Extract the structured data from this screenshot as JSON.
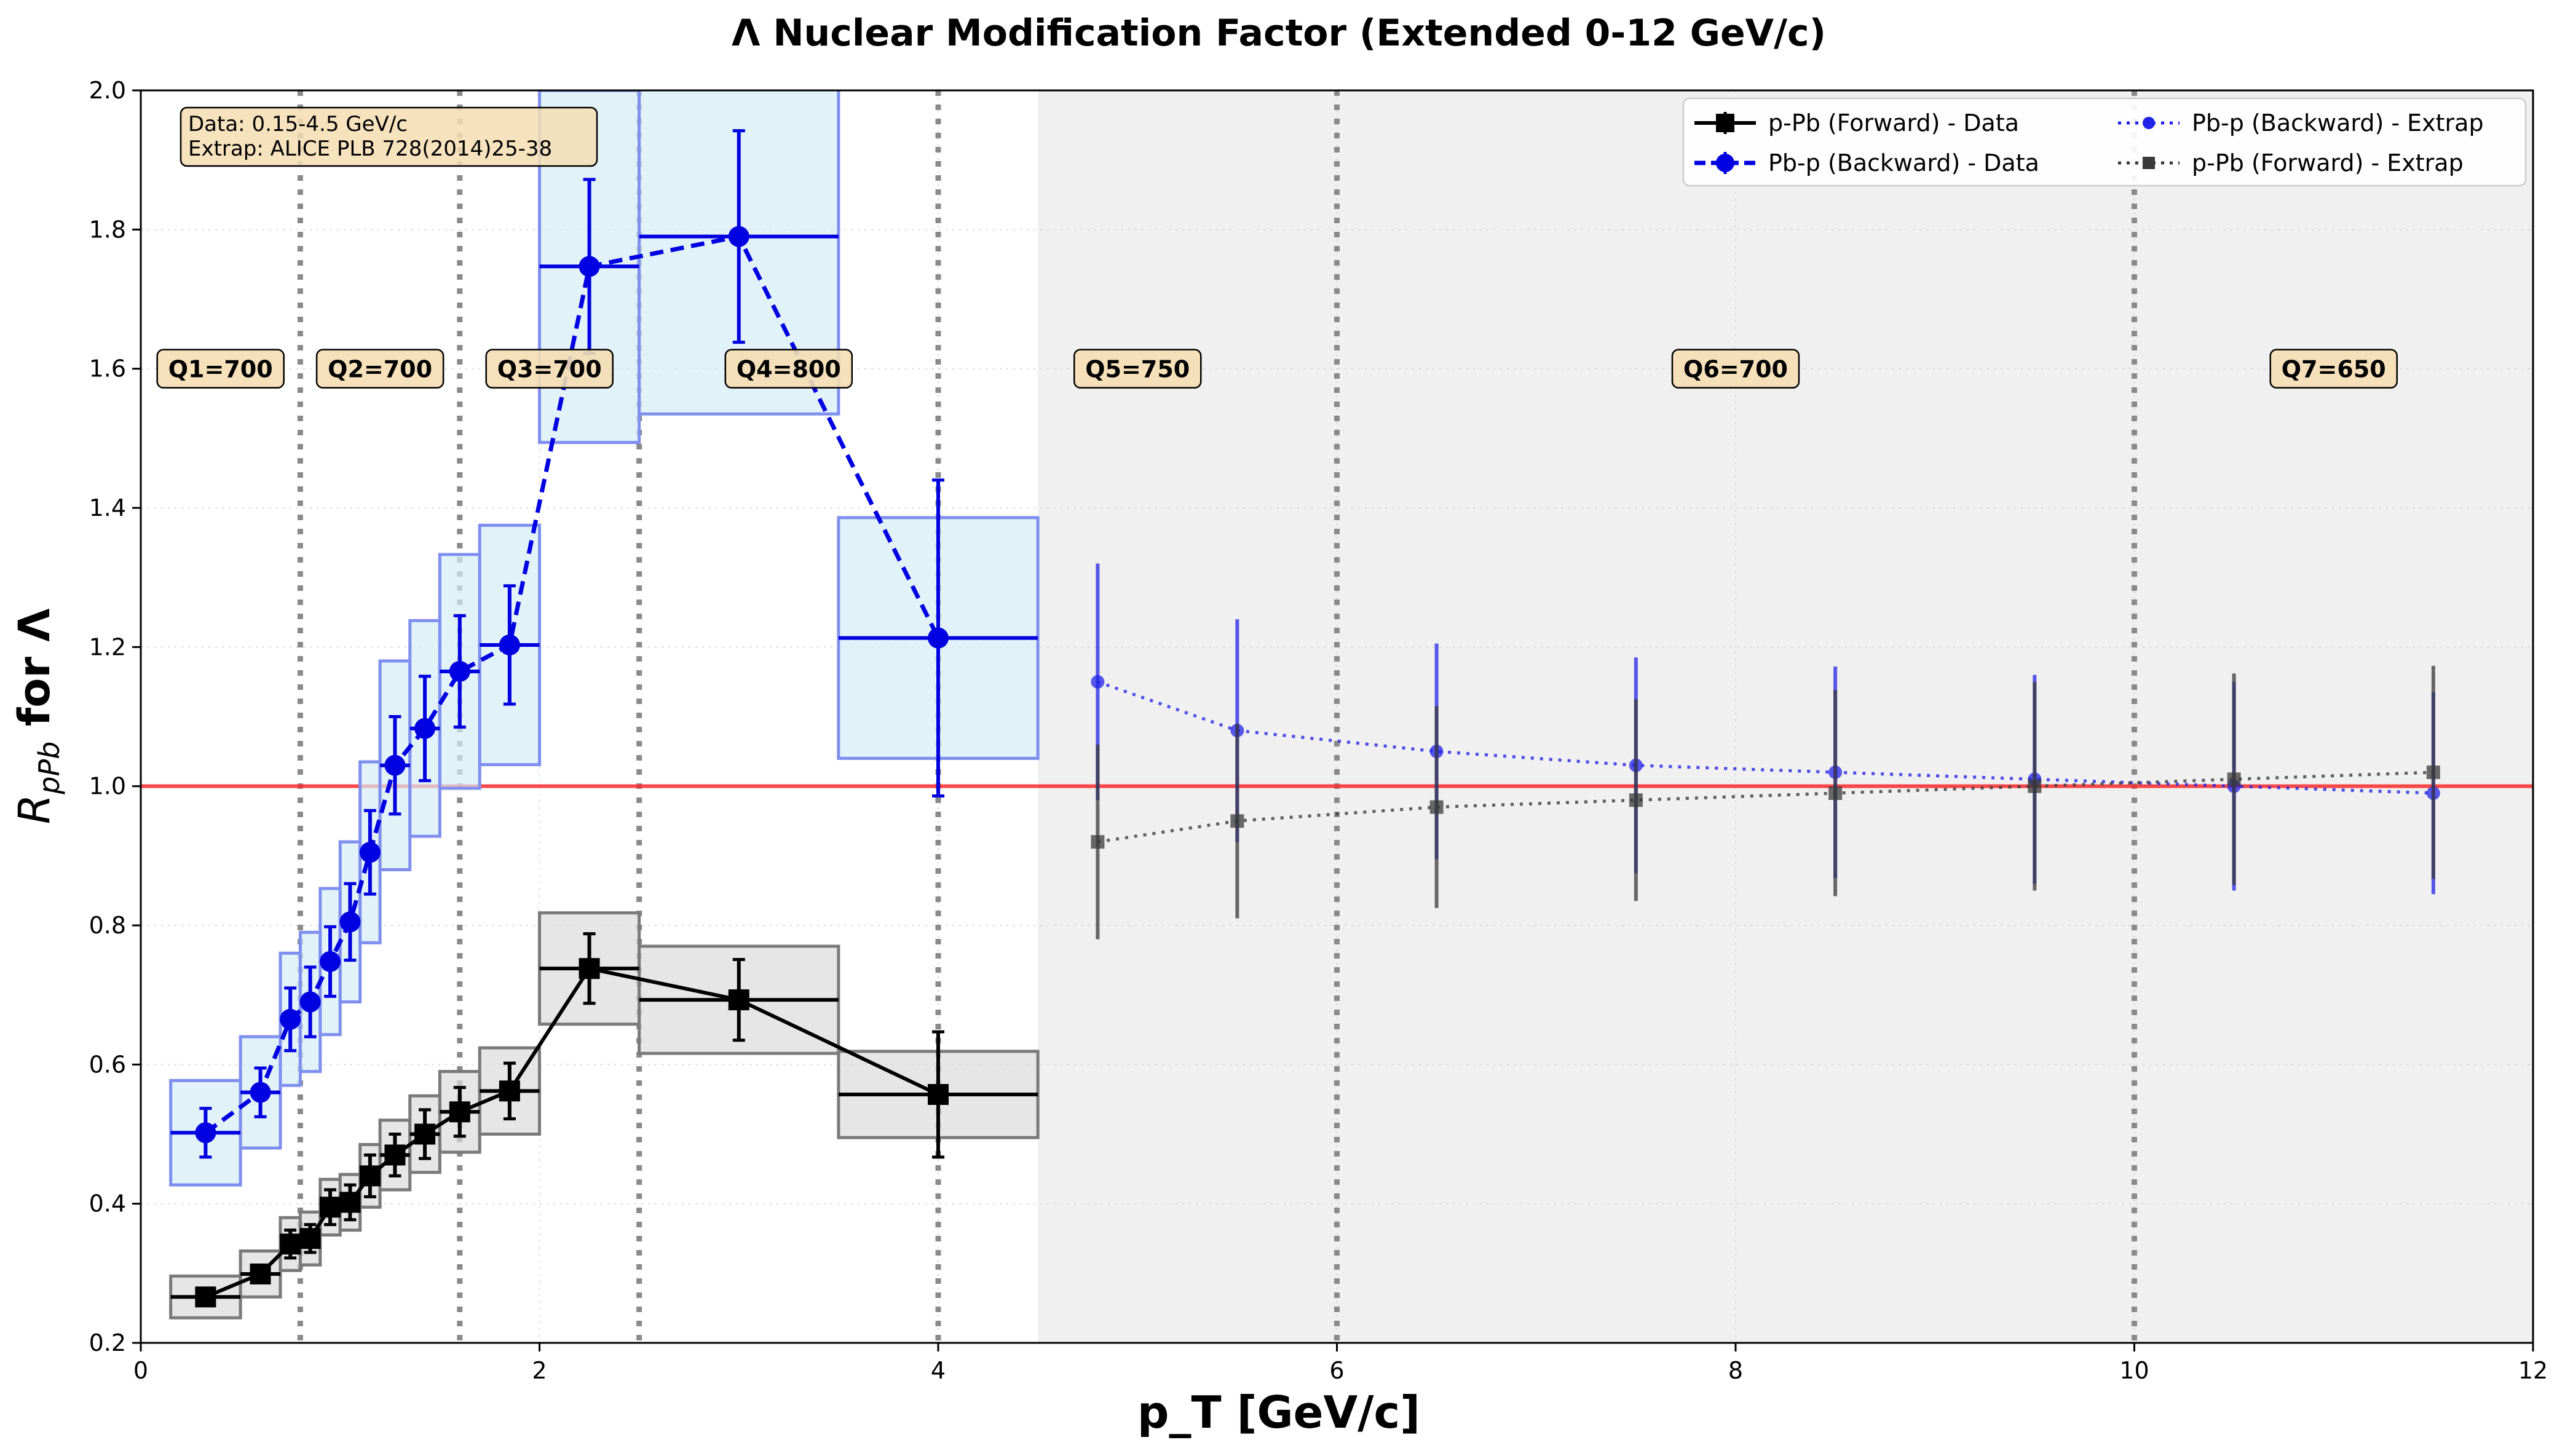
{
  "chart_data": {
    "type": "scatter",
    "title": "Λ Nuclear Modification Factor (Extended 0-12 GeV/c)",
    "xlabel": "p_T [GeV/c]",
    "ylabel_main": "R",
    "ylabel_sub": "pPb",
    "ylabel_tail": " for Λ",
    "xlim": [
      0,
      12
    ],
    "ylim": [
      0.2,
      2.0
    ],
    "xticks": [
      0,
      2,
      4,
      6,
      8,
      10,
      12
    ],
    "yticks": [
      0.2,
      0.4,
      0.6,
      0.8,
      1.0,
      1.2,
      1.4,
      1.6,
      1.8,
      2.0
    ],
    "grid": true,
    "reference_line": 1.0,
    "extrapolation_region": [
      4.5,
      12
    ],
    "info_box": [
      "Data: 0.15-4.5 GeV/c",
      "Extrap: ALICE PLB 728(2014)25-38"
    ],
    "quantile_boundaries": [
      0.8,
      1.6,
      2.5,
      4.0,
      6.0,
      10.0
    ],
    "quantile_labels": [
      {
        "text": "Q1=700",
        "x": 0.4
      },
      {
        "text": "Q2=700",
        "x": 1.2
      },
      {
        "text": "Q3=700",
        "x": 2.05
      },
      {
        "text": "Q4=800",
        "x": 3.25
      },
      {
        "text": "Q5=750",
        "x": 5.0
      },
      {
        "text": "Q6=700",
        "x": 8.0
      },
      {
        "text": "Q7=650",
        "x": 11.0
      }
    ],
    "series": [
      {
        "name": "p-Pb (Forward) - Data",
        "color": "#000000",
        "marker": "square",
        "linestyle": "solid",
        "boxcolor": "#7a7a7a",
        "boxfill": "#dcdcdc",
        "points": [
          {
            "x": 0.325,
            "y": 0.266,
            "xl": 0.15,
            "xh": 0.5,
            "err": 0.012,
            "sys": 0.03
          },
          {
            "x": 0.6,
            "y": 0.299,
            "xl": 0.5,
            "xh": 0.7,
            "err": 0.012,
            "sys": 0.033
          },
          {
            "x": 0.75,
            "y": 0.342,
            "xl": 0.7,
            "xh": 0.8,
            "err": 0.02,
            "sys": 0.038
          },
          {
            "x": 0.85,
            "y": 0.35,
            "xl": 0.8,
            "xh": 0.9,
            "err": 0.02,
            "sys": 0.038
          },
          {
            "x": 0.95,
            "y": 0.395,
            "xl": 0.9,
            "xh": 1.0,
            "err": 0.025,
            "sys": 0.04
          },
          {
            "x": 1.05,
            "y": 0.402,
            "xl": 1.0,
            "xh": 1.1,
            "err": 0.025,
            "sys": 0.04
          },
          {
            "x": 1.15,
            "y": 0.44,
            "xl": 1.1,
            "xh": 1.2,
            "err": 0.03,
            "sys": 0.045
          },
          {
            "x": 1.275,
            "y": 0.47,
            "xl": 1.2,
            "xh": 1.35,
            "err": 0.03,
            "sys": 0.05
          },
          {
            "x": 1.425,
            "y": 0.5,
            "xl": 1.35,
            "xh": 1.5,
            "err": 0.035,
            "sys": 0.055
          },
          {
            "x": 1.6,
            "y": 0.532,
            "xl": 1.5,
            "xh": 1.7,
            "err": 0.035,
            "sys": 0.058
          },
          {
            "x": 1.85,
            "y": 0.562,
            "xl": 1.7,
            "xh": 2.0,
            "err": 0.04,
            "sys": 0.062
          },
          {
            "x": 2.25,
            "y": 0.738,
            "xl": 2.0,
            "xh": 2.5,
            "err": 0.05,
            "sys": 0.08
          },
          {
            "x": 3.0,
            "y": 0.693,
            "xl": 2.5,
            "xh": 3.5,
            "err": 0.058,
            "sys": 0.077
          },
          {
            "x": 4.0,
            "y": 0.557,
            "xl": 3.5,
            "xh": 4.5,
            "err": 0.09,
            "sys": 0.062
          }
        ]
      },
      {
        "name": "Pb-p (Backward) - Data",
        "color": "#0000e0",
        "marker": "circle",
        "linestyle": "dashed",
        "boxcolor": "#7f8ff0",
        "boxfill": "#d6ecf6",
        "points": [
          {
            "x": 0.325,
            "y": 0.502,
            "xl": 0.15,
            "xh": 0.5,
            "err": 0.035,
            "sys": 0.075
          },
          {
            "x": 0.6,
            "y": 0.56,
            "xl": 0.5,
            "xh": 0.7,
            "err": 0.035,
            "sys": 0.08
          },
          {
            "x": 0.75,
            "y": 0.665,
            "xl": 0.7,
            "xh": 0.8,
            "err": 0.045,
            "sys": 0.095
          },
          {
            "x": 0.85,
            "y": 0.69,
            "xl": 0.8,
            "xh": 0.9,
            "err": 0.05,
            "sys": 0.1
          },
          {
            "x": 0.95,
            "y": 0.748,
            "xl": 0.9,
            "xh": 1.0,
            "err": 0.05,
            "sys": 0.105
          },
          {
            "x": 1.05,
            "y": 0.805,
            "xl": 1.0,
            "xh": 1.1,
            "err": 0.055,
            "sys": 0.115
          },
          {
            "x": 1.15,
            "y": 0.905,
            "xl": 1.1,
            "xh": 1.2,
            "err": 0.06,
            "sys": 0.13
          },
          {
            "x": 1.275,
            "y": 1.03,
            "xl": 1.2,
            "xh": 1.35,
            "err": 0.07,
            "sys": 0.15
          },
          {
            "x": 1.425,
            "y": 1.083,
            "xl": 1.35,
            "xh": 1.5,
            "err": 0.075,
            "sys": 0.155
          },
          {
            "x": 1.6,
            "y": 1.165,
            "xl": 1.5,
            "xh": 1.7,
            "err": 0.08,
            "sys": 0.168
          },
          {
            "x": 1.85,
            "y": 1.203,
            "xl": 1.7,
            "xh": 2.0,
            "err": 0.085,
            "sys": 0.172
          },
          {
            "x": 2.25,
            "y": 1.747,
            "xl": 2.0,
            "xh": 2.5,
            "err": 0.125,
            "sys": 0.253
          },
          {
            "x": 3.0,
            "y": 1.79,
            "xl": 2.5,
            "xh": 3.5,
            "err": 0.152,
            "sys": 0.255
          },
          {
            "x": 4.0,
            "y": 1.213,
            "xl": 3.5,
            "xh": 4.5,
            "err": 0.227,
            "sys": 0.173
          }
        ]
      },
      {
        "name": "Pb-p (Backward) - Extrap",
        "color": "#2323e8",
        "marker": "circle",
        "linestyle": "dotted",
        "points": [
          {
            "x": 4.8,
            "y": 1.15,
            "err": 0.17
          },
          {
            "x": 5.5,
            "y": 1.08,
            "err": 0.16
          },
          {
            "x": 6.5,
            "y": 1.05,
            "err": 0.155
          },
          {
            "x": 7.5,
            "y": 1.03,
            "err": 0.155
          },
          {
            "x": 8.5,
            "y": 1.02,
            "err": 0.152
          },
          {
            "x": 9.5,
            "y": 1.01,
            "err": 0.15
          },
          {
            "x": 10.5,
            "y": 1.0,
            "err": 0.15
          },
          {
            "x": 11.5,
            "y": 0.99,
            "err": 0.145
          }
        ]
      },
      {
        "name": "p-Pb (Forward) - Extrap",
        "color": "#3a3a3a",
        "marker": "square",
        "linestyle": "dotted",
        "points": [
          {
            "x": 4.8,
            "y": 0.92,
            "err": 0.14
          },
          {
            "x": 5.5,
            "y": 0.95,
            "err": 0.14
          },
          {
            "x": 6.5,
            "y": 0.97,
            "err": 0.145
          },
          {
            "x": 7.5,
            "y": 0.98,
            "err": 0.145
          },
          {
            "x": 8.5,
            "y": 0.99,
            "err": 0.148
          },
          {
            "x": 9.5,
            "y": 1.0,
            "err": 0.15
          },
          {
            "x": 10.5,
            "y": 1.01,
            "err": 0.152
          },
          {
            "x": 11.5,
            "y": 1.02,
            "err": 0.153
          }
        ]
      }
    ]
  }
}
